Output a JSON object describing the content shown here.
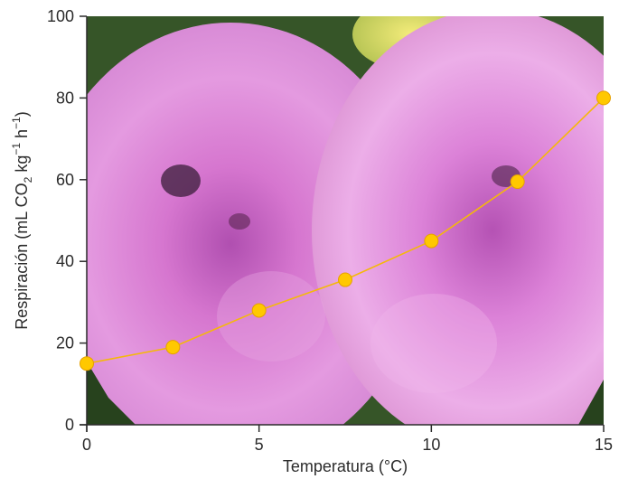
{
  "chart_data": {
    "type": "line",
    "title": "",
    "xlabel": "Temperatura (°C)",
    "ylabel_parts": {
      "a": "Respiración (mL CO",
      "sub": "2",
      "b": " kg",
      "sup1": "−1",
      "c": " h",
      "sup2": "−1",
      "d": ")"
    },
    "x": [
      0,
      2.5,
      5,
      7.5,
      10,
      12.5,
      15
    ],
    "y": [
      15,
      19,
      28,
      35.5,
      45,
      59.5,
      80
    ],
    "xlim": [
      0,
      15
    ],
    "ylim": [
      0,
      100
    ],
    "xticks": [
      0,
      5,
      10,
      15
    ],
    "xtick_labels": [
      "0",
      "5",
      "10",
      "15"
    ],
    "yticks": [
      0,
      20,
      40,
      60,
      80,
      100
    ],
    "ytick_labels": [
      "0",
      "20",
      "40",
      "60",
      "80",
      "100"
    ],
    "grid": false,
    "background": "photo of pink dahlia flowers",
    "colors": {
      "line": "#f5b80a",
      "marker": "#ffc800",
      "axis": "#2b2b2b"
    }
  }
}
